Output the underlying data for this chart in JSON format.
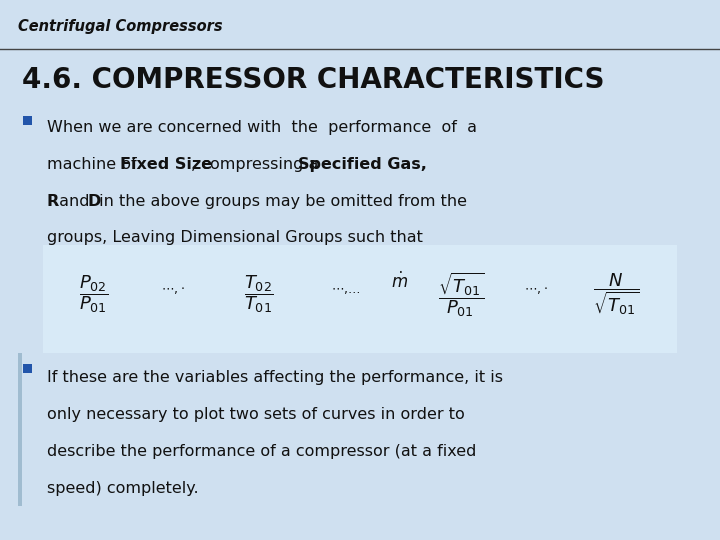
{
  "bg_color": "#cfe0f0",
  "header_bg": "#b8d3e8",
  "header_text": "Centrifugal Compressors",
  "title": "4.6. COMPRESSOR CHARACTERISTICS",
  "title_color": "#111111",
  "title_fontsize": 20,
  "body_fontsize": 11.5,
  "formula_fontsize": 13,
  "bullet_color": "#2255aa",
  "text_color": "#111111",
  "line1": "When we are concerned with  the  performance  of  a",
  "line2_a": "machine of ",
  "line2_b": "Fixed Size",
  "line2_c": ", compressing a ",
  "line2_d": "Specified Gas,",
  "line3_a": "R",
  "line3_b": " and ",
  "line3_c": "D",
  "line3_d": " in the above groups may be omitted from the",
  "line4": "groups, Leaving Dimensional Groups such that",
  "bullet2_line1": "If these are the variables affecting the performance, it is",
  "bullet2_line2": "only necessary to plot two sets of curves in order to",
  "bullet2_line3": "describe the performance of a compressor (at a fixed",
  "bullet2_line4": "speed) completely.",
  "header_line_color": "#333333",
  "sidebar_color": "#a0bcd0"
}
